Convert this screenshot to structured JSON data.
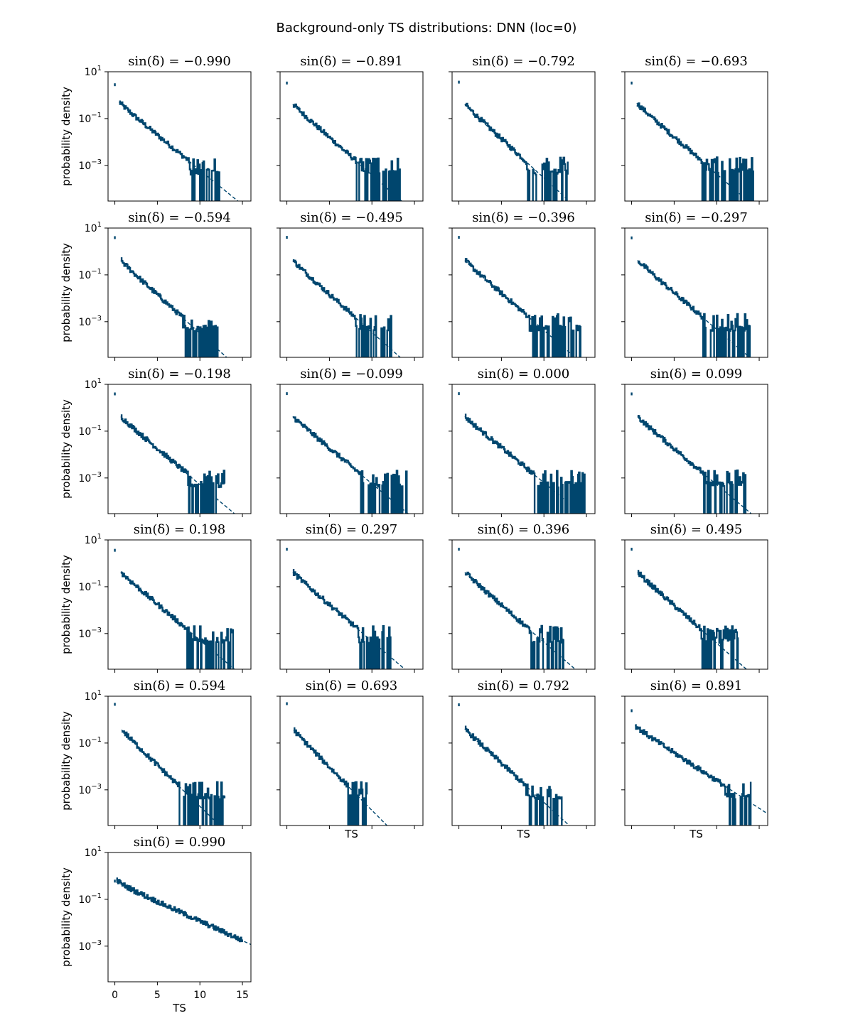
{
  "figure": {
    "title": "Background-only TS distributions: DNN (loc=0)",
    "color": "#00466e"
  },
  "chart_data": {
    "type": "histogram-grid",
    "title": "Background-only TS distributions: DNN (loc=0)",
    "xlabel": "TS",
    "ylabel": "probability density",
    "yscale": "log",
    "xlim": [
      -0.8,
      16
    ],
    "ylim": [
      3e-05,
      10
    ],
    "x_ticks": [
      0,
      5,
      10,
      15
    ],
    "y_ticks": [
      {
        "value": 10,
        "label": "10^1",
        "base": "10",
        "exp": "1"
      },
      {
        "value": 0.1,
        "label": "10^-1",
        "base": "10",
        "exp": "−1"
      },
      {
        "value": 0.001,
        "label": "10^-3",
        "base": "10",
        "exp": "−3"
      }
    ],
    "series_style": {
      "histogram": "solid step",
      "fit": "dashed line"
    },
    "panels": [
      {
        "title": "sin(δ) = −0.990",
        "sin_dec": -0.99,
        "zero_bin": 2.8,
        "hist_start": 0.5,
        "slope": 0.68,
        "max_ts": 12.4
      },
      {
        "title": "sin(δ) = −0.891",
        "sin_dec": -0.891,
        "zero_bin": 3.3,
        "hist_start": 0.7,
        "slope": 0.73,
        "max_ts": 13.3
      },
      {
        "title": "sin(δ) = −0.792",
        "sin_dec": -0.792,
        "zero_bin": 3.6,
        "hist_start": 0.7,
        "slope": 0.76,
        "max_ts": 12.8
      },
      {
        "title": "sin(δ) = −0.693",
        "sin_dec": -0.693,
        "zero_bin": 3.3,
        "hist_start": 0.6,
        "slope": 0.72,
        "max_ts": 14.3
      },
      {
        "title": "sin(δ) = −0.594",
        "sin_dec": -0.594,
        "zero_bin": 3.9,
        "hist_start": 0.7,
        "slope": 0.75,
        "max_ts": 12.1
      },
      {
        "title": "sin(δ) = −0.495",
        "sin_dec": -0.495,
        "zero_bin": 4.0,
        "hist_start": 0.7,
        "slope": 0.74,
        "max_ts": 12.3
      },
      {
        "title": "sin(δ) = −0.396",
        "sin_dec": -0.396,
        "zero_bin": 4.0,
        "hist_start": 0.7,
        "slope": 0.72,
        "max_ts": 14.3
      },
      {
        "title": "sin(δ) = −0.297",
        "sin_dec": -0.297,
        "zero_bin": 3.8,
        "hist_start": 0.7,
        "slope": 0.71,
        "max_ts": 13.9
      },
      {
        "title": "sin(δ) = −0.198",
        "sin_dec": -0.198,
        "zero_bin": 3.9,
        "hist_start": 0.7,
        "slope": 0.7,
        "max_ts": 12.9
      },
      {
        "title": "sin(δ) = −0.099",
        "sin_dec": -0.099,
        "zero_bin": 4.0,
        "hist_start": 0.7,
        "slope": 0.69,
        "max_ts": 14.3
      },
      {
        "title": "sin(δ) = 0.000",
        "sin_dec": 0.0,
        "zero_bin": 4.0,
        "hist_start": 0.7,
        "slope": 0.68,
        "max_ts": 14.8
      },
      {
        "title": "sin(δ) = 0.099",
        "sin_dec": 0.099,
        "zero_bin": 3.9,
        "hist_start": 0.7,
        "slope": 0.7,
        "max_ts": 13.4
      },
      {
        "title": "sin(δ) = 0.198",
        "sin_dec": 0.198,
        "zero_bin": 3.6,
        "hist_start": 0.7,
        "slope": 0.7,
        "max_ts": 13.9
      },
      {
        "title": "sin(δ) = 0.297",
        "sin_dec": 0.297,
        "zero_bin": 4.0,
        "hist_start": 0.7,
        "slope": 0.71,
        "max_ts": 12.2
      },
      {
        "title": "sin(δ) = 0.396",
        "sin_dec": 0.396,
        "zero_bin": 4.0,
        "hist_start": 0.7,
        "slope": 0.72,
        "max_ts": 12.3
      },
      {
        "title": "sin(δ) = 0.495",
        "sin_dec": 0.495,
        "zero_bin": 4.0,
        "hist_start": 0.7,
        "slope": 0.73,
        "max_ts": 12.5
      },
      {
        "title": "sin(δ) = 0.594",
        "sin_dec": 0.594,
        "zero_bin": 4.5,
        "hist_start": 0.8,
        "slope": 0.8,
        "max_ts": 12.9
      },
      {
        "title": "sin(δ) = 0.693",
        "sin_dec": 0.693,
        "zero_bin": 4.8,
        "hist_start": 0.8,
        "slope": 0.84,
        "max_ts": 9.4
      },
      {
        "title": "sin(δ) = 0.792",
        "sin_dec": 0.792,
        "zero_bin": 4.3,
        "hist_start": 0.7,
        "slope": 0.76,
        "max_ts": 12.1
      },
      {
        "title": "sin(δ) = 0.891",
        "sin_dec": 0.891,
        "zero_bin": 2.4,
        "hist_start": 0.4,
        "slope": 0.54,
        "max_ts": 14.0
      },
      {
        "title": "sin(δ) = 0.990",
        "sin_dec": 0.99,
        "zero_bin": 0.6,
        "hist_start": 0.17,
        "slope": 0.38,
        "max_ts": 15.0
      }
    ]
  }
}
